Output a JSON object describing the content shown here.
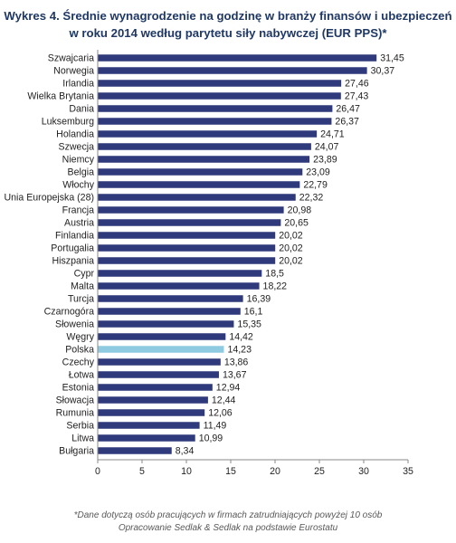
{
  "chart_data": {
    "type": "bar",
    "orientation": "horizontal",
    "title": "Wykres 4. Średnie wynagrodzenie na godzinę w branży finansów i ubezpieczeń",
    "subtitle": "w roku 2014  według parytetu siły nabywczej (EUR PPS)*",
    "categories": [
      "Szwajcaria",
      "Norwegia",
      "Irlandia",
      "Wielka Brytania",
      "Dania",
      "Luksemburg",
      "Holandia",
      "Szwecja",
      "Niemcy",
      "Belgia",
      "Włochy",
      "Unia Europejska (28)",
      "Francja",
      "Austria",
      "Finlandia",
      "Portugalia",
      "Hiszpania",
      "Cypr",
      "Malta",
      "Turcja",
      "Czarnogóra",
      "Słowenia",
      "Węgry",
      "Polska",
      "Czechy",
      "Łotwa",
      "Estonia",
      "Słowacja",
      "Rumunia",
      "Serbia",
      "Litwa",
      "Bułgaria"
    ],
    "values": [
      31.45,
      30.37,
      27.46,
      27.43,
      26.47,
      26.37,
      24.71,
      24.07,
      23.89,
      23.09,
      22.79,
      22.32,
      20.98,
      20.65,
      20.02,
      20.02,
      20.02,
      18.5,
      18.22,
      16.39,
      16.1,
      15.35,
      14.42,
      14.23,
      13.86,
      13.67,
      12.94,
      12.44,
      12.06,
      11.49,
      10.99,
      8.34
    ],
    "value_labels": [
      "31,45",
      "30,37",
      "27,46",
      "27,43",
      "26,47",
      "26,37",
      "24,71",
      "24,07",
      "23,89",
      "23,09",
      "22,79",
      "22,32",
      "20,98",
      "20,65",
      "20,02",
      "20,02",
      "20,02",
      "18,5",
      "18,22",
      "16,39",
      "16,1",
      "15,35",
      "14,42",
      "14,23",
      "13,86",
      "13,67",
      "12,94",
      "12,44",
      "12,06",
      "11,49",
      "10,99",
      "8,34"
    ],
    "xlim": [
      0,
      35
    ],
    "x_ticks": [
      0,
      5,
      10,
      15,
      20,
      25,
      30,
      35
    ],
    "grid": false,
    "legend": "none",
    "bar_color": "#2e3a7c",
    "highlight_category": "Polska",
    "highlight_color": "#8fcbe0"
  },
  "footnote": {
    "line1": "*Dane dotyczą  osób pracujących  w firmach zatrudniających  powyżej 10 osób",
    "line2": "Opracowanie  Sedlak & Sedlak na podstawie Eurostatu"
  }
}
